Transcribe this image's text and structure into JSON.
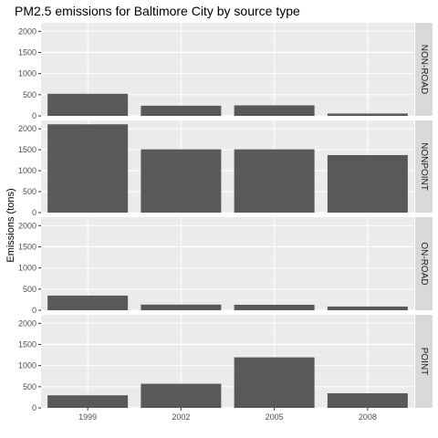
{
  "chart_data": {
    "type": "bar",
    "title": "PM2.5 emissions for Baltimore City by source type",
    "xlabel": "",
    "ylabel": "Emissions (tons)",
    "categories": [
      "1999",
      "2002",
      "2005",
      "2008"
    ],
    "ylim": [
      0,
      2200
    ],
    "yticks": [
      0,
      500,
      1000,
      1500,
      2000
    ],
    "grid": true,
    "facets": [
      {
        "name": "NON-ROAD",
        "values": [
          522,
          241,
          249,
          55
        ]
      },
      {
        "name": "NONPOINT",
        "values": [
          2108,
          1510,
          1510,
          1373
        ]
      },
      {
        "name": "ON-ROAD",
        "values": [
          347,
          134,
          130,
          88
        ]
      },
      {
        "name": "POINT",
        "values": [
          297,
          570,
          1195,
          345
        ]
      }
    ],
    "colors": {
      "panel_bg": "#ebebeb",
      "grid_major": "#ffffff",
      "grid_minor": "#f2f2f2",
      "bar": "#595959",
      "strip_bg": "#d9d9d9"
    }
  }
}
